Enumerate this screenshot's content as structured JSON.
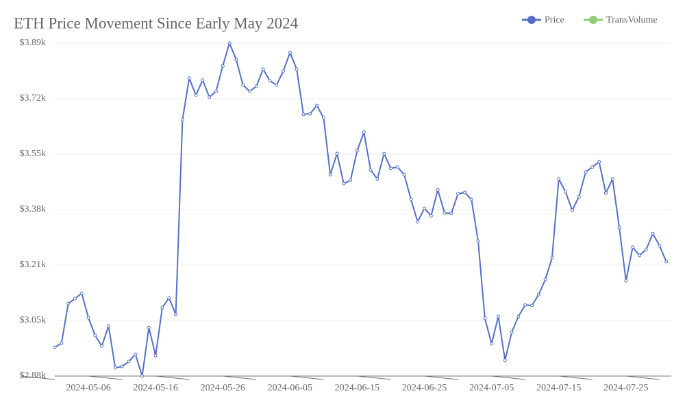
{
  "chart_data": {
    "type": "line",
    "title": "ETH Price Movement Since Early May 2024",
    "x": [
      "2024-05-01",
      "2024-05-02",
      "2024-05-03",
      "2024-05-04",
      "2024-05-05",
      "2024-05-06",
      "2024-05-07",
      "2024-05-08",
      "2024-05-09",
      "2024-05-10",
      "2024-05-11",
      "2024-05-12",
      "2024-05-13",
      "2024-05-14",
      "2024-05-15",
      "2024-05-16",
      "2024-05-17",
      "2024-05-18",
      "2024-05-19",
      "2024-05-20",
      "2024-05-21",
      "2024-05-22",
      "2024-05-23",
      "2024-05-24",
      "2024-05-25",
      "2024-05-26",
      "2024-05-27",
      "2024-05-28",
      "2024-05-29",
      "2024-05-30",
      "2024-05-31",
      "2024-06-01",
      "2024-06-02",
      "2024-06-03",
      "2024-06-04",
      "2024-06-05",
      "2024-06-06",
      "2024-06-07",
      "2024-06-08",
      "2024-06-09",
      "2024-06-10",
      "2024-06-11",
      "2024-06-12",
      "2024-06-13",
      "2024-06-14",
      "2024-06-15",
      "2024-06-16",
      "2024-06-17",
      "2024-06-18",
      "2024-06-19",
      "2024-06-20",
      "2024-06-21",
      "2024-06-22",
      "2024-06-23",
      "2024-06-24",
      "2024-06-25",
      "2024-06-26",
      "2024-06-27",
      "2024-06-28",
      "2024-06-29",
      "2024-06-30",
      "2024-07-01",
      "2024-07-02",
      "2024-07-03",
      "2024-07-04",
      "2024-07-05",
      "2024-07-06",
      "2024-07-07",
      "2024-07-08",
      "2024-07-09",
      "2024-07-10",
      "2024-07-11",
      "2024-07-12",
      "2024-07-13",
      "2024-07-14",
      "2024-07-15",
      "2024-07-16",
      "2024-07-17",
      "2024-07-18",
      "2024-07-19",
      "2024-07-20",
      "2024-07-21",
      "2024-07-22",
      "2024-07-23",
      "2024-07-24",
      "2024-07-25",
      "2024-07-26",
      "2024-07-27",
      "2024-07-28",
      "2024-07-29",
      "2024-07-30",
      "2024-07-31"
    ],
    "series": [
      {
        "name": "Price",
        "color": "#5470c6",
        "values": [
          2964,
          2977,
          3097,
          3112,
          3128,
          3054,
          3000,
          2968,
          3029,
          2902,
          2906,
          2921,
          2943,
          2877,
          3024,
          2939,
          3085,
          3114,
          3064,
          3654,
          3781,
          3729,
          3775,
          3723,
          3741,
          3818,
          3887,
          3837,
          3760,
          3741,
          3756,
          3808,
          3773,
          3760,
          3802,
          3858,
          3808,
          3671,
          3673,
          3698,
          3660,
          3488,
          3552,
          3461,
          3471,
          3561,
          3617,
          3502,
          3475,
          3552,
          3507,
          3511,
          3488,
          3413,
          3345,
          3386,
          3363,
          3442,
          3372,
          3370,
          3430,
          3434,
          3413,
          3286,
          3052,
          2975,
          3058,
          2925,
          3010,
          3058,
          3093,
          3091,
          3124,
          3170,
          3236,
          3475,
          3436,
          3380,
          3421,
          3496,
          3511,
          3527,
          3432,
          3475,
          3328,
          3166,
          3268,
          3243,
          3261,
          3309,
          3272,
          3224
        ]
      },
      {
        "name": "TransVolume",
        "color": "#91cc75",
        "values": [
          null,
          null,
          null,
          null,
          null,
          null,
          null,
          null,
          null,
          null,
          null,
          null,
          null,
          null,
          null,
          null,
          null,
          null,
          null,
          null,
          null,
          null,
          null,
          null,
          null,
          null,
          null,
          null,
          null,
          null,
          null,
          null,
          null,
          null,
          null,
          null,
          null,
          null,
          null,
          null,
          null,
          null,
          null,
          null,
          null,
          null,
          null,
          null,
          null,
          null,
          null,
          null,
          null,
          null,
          null,
          null,
          null,
          null,
          null,
          null,
          null,
          null,
          null,
          null,
          null,
          null,
          null,
          null,
          null,
          null,
          null,
          null,
          null,
          null,
          null,
          null,
          null,
          null,
          null,
          null,
          null,
          null,
          null,
          null,
          null,
          null,
          null,
          null,
          null,
          null,
          null,
          null
        ]
      }
    ],
    "ylim": [
      2877,
      3887
    ],
    "yticks": [
      {
        "value": 2877,
        "label": "$2.88k"
      },
      {
        "value": 3045.3,
        "label": "$3.05k"
      },
      {
        "value": 3213.7,
        "label": "$3.21k"
      },
      {
        "value": 3382,
        "label": "$3.38k"
      },
      {
        "value": 3550.3,
        "label": "$3.55k"
      },
      {
        "value": 3718.7,
        "label": "$3.72k"
      },
      {
        "value": 3887,
        "label": "$3.89k"
      }
    ],
    "grid": true
  }
}
